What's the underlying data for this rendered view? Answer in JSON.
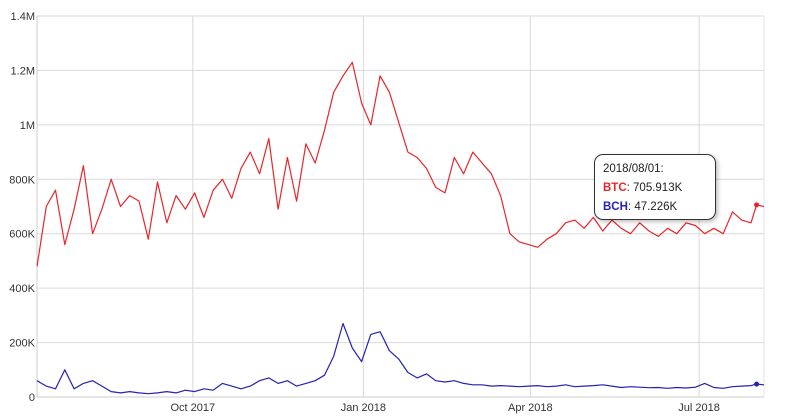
{
  "chart_data": {
    "type": "line",
    "title": "",
    "xlabel": "",
    "ylabel": "",
    "x_range": [
      "2017-07-09",
      "2018-08-05"
    ],
    "ylim": [
      0,
      1400000
    ],
    "y_ticks": [
      {
        "value": 0,
        "label": "0"
      },
      {
        "value": 200000,
        "label": "200K"
      },
      {
        "value": 400000,
        "label": "400K"
      },
      {
        "value": 600000,
        "label": "600K"
      },
      {
        "value": 800000,
        "label": "800K"
      },
      {
        "value": 1000000,
        "label": "1M"
      },
      {
        "value": 1200000,
        "label": "1.2M"
      },
      {
        "value": 1400000,
        "label": "1.4M"
      }
    ],
    "x_ticks": [
      {
        "date": "2017-10-01",
        "label": "Oct 2017"
      },
      {
        "date": "2018-01-01",
        "label": "Jan 2018"
      },
      {
        "date": "2018-04-01",
        "label": "Apr 2018"
      },
      {
        "date": "2018-07-01",
        "label": "Jul 2018"
      }
    ],
    "grid": true,
    "series": [
      {
        "name": "BTC",
        "color": "#e8262a",
        "points": [
          [
            "2017-07-09",
            480000
          ],
          [
            "2017-07-14",
            700000
          ],
          [
            "2017-07-19",
            760000
          ],
          [
            "2017-07-24",
            560000
          ],
          [
            "2017-07-29",
            690000
          ],
          [
            "2017-08-03",
            850000
          ],
          [
            "2017-08-08",
            600000
          ],
          [
            "2017-08-13",
            690000
          ],
          [
            "2017-08-18",
            800000
          ],
          [
            "2017-08-23",
            700000
          ],
          [
            "2017-08-28",
            740000
          ],
          [
            "2017-09-02",
            720000
          ],
          [
            "2017-09-07",
            580000
          ],
          [
            "2017-09-12",
            790000
          ],
          [
            "2017-09-17",
            640000
          ],
          [
            "2017-09-22",
            740000
          ],
          [
            "2017-09-27",
            690000
          ],
          [
            "2017-10-02",
            750000
          ],
          [
            "2017-10-07",
            660000
          ],
          [
            "2017-10-12",
            760000
          ],
          [
            "2017-10-17",
            800000
          ],
          [
            "2017-10-22",
            730000
          ],
          [
            "2017-10-27",
            840000
          ],
          [
            "2017-11-01",
            900000
          ],
          [
            "2017-11-06",
            820000
          ],
          [
            "2017-11-11",
            950000
          ],
          [
            "2017-11-16",
            690000
          ],
          [
            "2017-11-21",
            880000
          ],
          [
            "2017-11-26",
            720000
          ],
          [
            "2017-12-01",
            930000
          ],
          [
            "2017-12-06",
            860000
          ],
          [
            "2017-12-11",
            980000
          ],
          [
            "2017-12-16",
            1120000
          ],
          [
            "2017-12-21",
            1180000
          ],
          [
            "2017-12-26",
            1230000
          ],
          [
            "2017-12-31",
            1080000
          ],
          [
            "2018-01-05",
            1000000
          ],
          [
            "2018-01-10",
            1180000
          ],
          [
            "2018-01-15",
            1120000
          ],
          [
            "2018-01-20",
            1010000
          ],
          [
            "2018-01-25",
            900000
          ],
          [
            "2018-01-30",
            880000
          ],
          [
            "2018-02-04",
            840000
          ],
          [
            "2018-02-09",
            770000
          ],
          [
            "2018-02-14",
            750000
          ],
          [
            "2018-02-19",
            880000
          ],
          [
            "2018-02-24",
            820000
          ],
          [
            "2018-03-01",
            900000
          ],
          [
            "2018-03-06",
            860000
          ],
          [
            "2018-03-11",
            820000
          ],
          [
            "2018-03-16",
            740000
          ],
          [
            "2018-03-21",
            600000
          ],
          [
            "2018-03-26",
            570000
          ],
          [
            "2018-03-31",
            560000
          ],
          [
            "2018-04-05",
            550000
          ],
          [
            "2018-04-10",
            580000
          ],
          [
            "2018-04-15",
            600000
          ],
          [
            "2018-04-20",
            640000
          ],
          [
            "2018-04-25",
            650000
          ],
          [
            "2018-04-30",
            620000
          ],
          [
            "2018-05-05",
            660000
          ],
          [
            "2018-05-10",
            610000
          ],
          [
            "2018-05-15",
            650000
          ],
          [
            "2018-05-20",
            620000
          ],
          [
            "2018-05-25",
            600000
          ],
          [
            "2018-05-30",
            640000
          ],
          [
            "2018-06-04",
            610000
          ],
          [
            "2018-06-09",
            590000
          ],
          [
            "2018-06-14",
            620000
          ],
          [
            "2018-06-19",
            600000
          ],
          [
            "2018-06-24",
            640000
          ],
          [
            "2018-06-29",
            630000
          ],
          [
            "2018-07-04",
            600000
          ],
          [
            "2018-07-09",
            620000
          ],
          [
            "2018-07-14",
            600000
          ],
          [
            "2018-07-19",
            680000
          ],
          [
            "2018-07-24",
            650000
          ],
          [
            "2018-07-29",
            640000
          ],
          [
            "2018-08-01",
            705913
          ],
          [
            "2018-08-05",
            700000
          ]
        ]
      },
      {
        "name": "BCH",
        "color": "#2323b4",
        "points": [
          [
            "2017-07-09",
            60000
          ],
          [
            "2017-07-14",
            40000
          ],
          [
            "2017-07-19",
            30000
          ],
          [
            "2017-07-24",
            100000
          ],
          [
            "2017-07-29",
            30000
          ],
          [
            "2017-08-03",
            50000
          ],
          [
            "2017-08-08",
            60000
          ],
          [
            "2017-08-13",
            40000
          ],
          [
            "2017-08-18",
            20000
          ],
          [
            "2017-08-23",
            15000
          ],
          [
            "2017-08-28",
            20000
          ],
          [
            "2017-09-02",
            15000
          ],
          [
            "2017-09-07",
            12000
          ],
          [
            "2017-09-12",
            15000
          ],
          [
            "2017-09-17",
            20000
          ],
          [
            "2017-09-22",
            15000
          ],
          [
            "2017-09-27",
            25000
          ],
          [
            "2017-10-02",
            20000
          ],
          [
            "2017-10-07",
            30000
          ],
          [
            "2017-10-12",
            25000
          ],
          [
            "2017-10-17",
            50000
          ],
          [
            "2017-10-22",
            40000
          ],
          [
            "2017-10-27",
            30000
          ],
          [
            "2017-11-01",
            40000
          ],
          [
            "2017-11-06",
            60000
          ],
          [
            "2017-11-11",
            70000
          ],
          [
            "2017-11-16",
            50000
          ],
          [
            "2017-11-21",
            60000
          ],
          [
            "2017-11-26",
            40000
          ],
          [
            "2017-12-01",
            50000
          ],
          [
            "2017-12-06",
            60000
          ],
          [
            "2017-12-11",
            80000
          ],
          [
            "2017-12-16",
            150000
          ],
          [
            "2017-12-21",
            270000
          ],
          [
            "2017-12-26",
            180000
          ],
          [
            "2017-12-31",
            130000
          ],
          [
            "2018-01-05",
            230000
          ],
          [
            "2018-01-10",
            240000
          ],
          [
            "2018-01-15",
            170000
          ],
          [
            "2018-01-20",
            140000
          ],
          [
            "2018-01-25",
            90000
          ],
          [
            "2018-01-30",
            70000
          ],
          [
            "2018-02-04",
            85000
          ],
          [
            "2018-02-09",
            60000
          ],
          [
            "2018-02-14",
            55000
          ],
          [
            "2018-02-19",
            60000
          ],
          [
            "2018-02-24",
            50000
          ],
          [
            "2018-03-01",
            45000
          ],
          [
            "2018-03-06",
            45000
          ],
          [
            "2018-03-11",
            40000
          ],
          [
            "2018-03-16",
            42000
          ],
          [
            "2018-03-21",
            40000
          ],
          [
            "2018-03-26",
            38000
          ],
          [
            "2018-03-31",
            40000
          ],
          [
            "2018-04-05",
            42000
          ],
          [
            "2018-04-10",
            38000
          ],
          [
            "2018-04-15",
            40000
          ],
          [
            "2018-04-20",
            45000
          ],
          [
            "2018-04-25",
            38000
          ],
          [
            "2018-04-30",
            40000
          ],
          [
            "2018-05-05",
            42000
          ],
          [
            "2018-05-10",
            45000
          ],
          [
            "2018-05-15",
            40000
          ],
          [
            "2018-05-20",
            35000
          ],
          [
            "2018-05-25",
            38000
          ],
          [
            "2018-05-30",
            36000
          ],
          [
            "2018-06-04",
            34000
          ],
          [
            "2018-06-09",
            35000
          ],
          [
            "2018-06-14",
            32000
          ],
          [
            "2018-06-19",
            35000
          ],
          [
            "2018-06-24",
            33000
          ],
          [
            "2018-06-29",
            36000
          ],
          [
            "2018-07-04",
            50000
          ],
          [
            "2018-07-09",
            35000
          ],
          [
            "2018-07-14",
            32000
          ],
          [
            "2018-07-19",
            38000
          ],
          [
            "2018-07-24",
            40000
          ],
          [
            "2018-07-29",
            42000
          ],
          [
            "2018-08-01",
            47226
          ],
          [
            "2018-08-05",
            45000
          ]
        ]
      }
    ],
    "tooltip": {
      "date": "2018/08/01:",
      "entries": [
        {
          "series": "BTC",
          "label": "BTC",
          "value": "705.913K",
          "color": "#e8262a"
        },
        {
          "series": "BCH",
          "label": "BCH",
          "value": "47.226K",
          "color": "#2323b4"
        }
      ]
    }
  }
}
